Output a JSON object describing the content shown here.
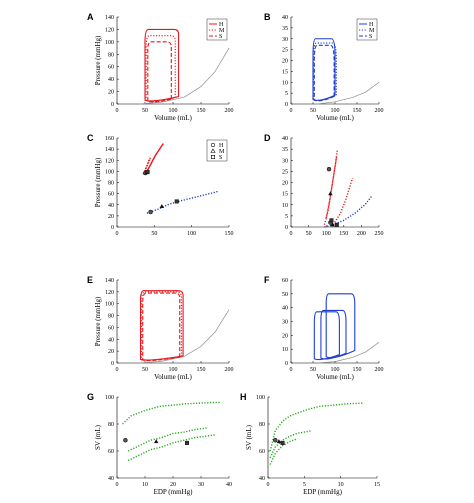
{
  "colors": {
    "red": "#e8161b",
    "blue": "#1f3fd1",
    "green": "#1fa814",
    "gray": "#8c8c8c",
    "black": "#111111"
  },
  "chart_data": [
    {
      "panel": "A",
      "type": "line",
      "xlabel": "Volume (mL)",
      "ylabel": "Pressure (mmHg)",
      "xlim": [
        0,
        200
      ],
      "ylim": [
        0,
        140
      ],
      "xticks": [
        0,
        50,
        100,
        150,
        200
      ],
      "yticks": [
        0,
        20,
        40,
        60,
        80,
        100,
        120,
        140
      ],
      "legend": {
        "position": "top-right",
        "entries": [
          "H",
          "M",
          "S"
        ]
      },
      "loops": [
        {
          "name": "H",
          "style": "solid",
          "edv": 110,
          "esv": 50,
          "ped": 12,
          "pes": 104,
          "pmax": 120
        },
        {
          "name": "M",
          "style": "dotted",
          "edv": 104,
          "esv": 52,
          "ped": 10,
          "pes": 95,
          "pmax": 110
        },
        {
          "name": "S",
          "style": "dashed",
          "edv": 97,
          "esv": 55,
          "ped": 8,
          "pes": 92,
          "pmax": 100
        }
      ],
      "edpvr": {
        "color": "gray",
        "x": [
          40,
          80,
          120,
          150,
          175,
          200
        ],
        "y": [
          0,
          3,
          11,
          28,
          52,
          90
        ]
      }
    },
    {
      "panel": "B",
      "type": "line",
      "xlabel": "Volume (mL)",
      "ylabel": "",
      "xlim": [
        0,
        200
      ],
      "ylim": [
        0,
        40
      ],
      "xticks": [
        0,
        50,
        100,
        150,
        200
      ],
      "yticks": [
        0,
        5,
        10,
        15,
        20,
        25,
        30,
        35,
        40
      ],
      "legend": {
        "position": "top-right",
        "entries": [
          "H",
          "M",
          "S"
        ]
      },
      "loops": [
        {
          "name": "H",
          "style": "solid",
          "edv": 100,
          "esv": 50,
          "ped": 4,
          "pes": 26,
          "pmax": 30
        },
        {
          "name": "M",
          "style": "dotted",
          "edv": 103,
          "esv": 51,
          "ped": 4,
          "pes": 24,
          "pmax": 28
        },
        {
          "name": "S",
          "style": "dashed",
          "edv": 98,
          "esv": 53,
          "ped": 3.5,
          "pes": 23,
          "pmax": 27
        }
      ],
      "edpvr": {
        "color": "gray",
        "x": [
          60,
          100,
          140,
          170,
          200
        ],
        "y": [
          0,
          1,
          3,
          5.5,
          10
        ]
      }
    },
    {
      "panel": "C",
      "type": "scatter",
      "xlabel": "",
      "ylabel": "Pressure (mmHg)",
      "xlim": [
        0,
        150
      ],
      "ylim": [
        0,
        160
      ],
      "xticks": [
        0,
        50,
        100,
        150
      ],
      "yticks": [
        0,
        20,
        40,
        60,
        80,
        100,
        120,
        140,
        160
      ],
      "legend": {
        "position": "top-right",
        "entries": [
          "H",
          "M",
          "S"
        ]
      },
      "series": [
        {
          "color": "red",
          "x": [
            40,
            42,
            45,
            48,
            52,
            58,
            62
          ],
          "y": [
            100,
            105,
            112,
            120,
            130,
            142,
            150
          ],
          "style": "solid"
        },
        {
          "color": "red",
          "x": [
            35,
            37,
            40,
            42,
            45
          ],
          "y": [
            95,
            100,
            110,
            118,
            125
          ],
          "style": "dotted"
        },
        {
          "color": "red",
          "x": [
            36,
            38,
            41,
            44
          ],
          "y": [
            96,
            103,
            112,
            122
          ],
          "style": "dotted"
        },
        {
          "color": "blue",
          "x": [
            40,
            55,
            70,
            85,
            100,
            115,
            130,
            135
          ],
          "y": [
            25,
            32,
            41,
            47,
            52,
            57,
            62,
            64
          ],
          "style": "dotted"
        }
      ],
      "markers": [
        {
          "name": "H",
          "shape": "circle",
          "points": [
            [
              38,
              97
            ],
            [
              45,
              27
            ]
          ]
        },
        {
          "name": "M",
          "shape": "triangle",
          "points": [
            [
              40,
              98
            ],
            [
              60,
              37
            ]
          ]
        },
        {
          "name": "S",
          "shape": "square",
          "points": [
            [
              41,
              99
            ],
            [
              80,
              46
            ]
          ]
        }
      ]
    },
    {
      "panel": "D",
      "type": "scatter",
      "xlabel": "",
      "ylabel": "",
      "xlim": [
        0,
        250
      ],
      "ylim": [
        0,
        40
      ],
      "xticks": [
        0,
        50,
        100,
        150,
        200,
        250
      ],
      "yticks": [
        0,
        5,
        10,
        15,
        20,
        25,
        30,
        35,
        40
      ],
      "series": [
        {
          "color": "red",
          "x": [
            95,
            105,
            112,
            118,
            124,
            130
          ],
          "y": [
            1,
            7,
            14,
            20,
            26,
            32
          ],
          "style": "dotted"
        },
        {
          "color": "red",
          "x": [
            100,
            110,
            118,
            126,
            132
          ],
          "y": [
            4,
            12,
            20,
            28,
            35
          ],
          "style": "dotted"
        },
        {
          "color": "red",
          "x": [
            120,
            140,
            155,
            165,
            175
          ],
          "y": [
            1,
            6,
            12,
            17,
            22
          ],
          "style": "dotted"
        },
        {
          "color": "blue",
          "x": [
            95,
            120,
            150,
            180,
            210,
            230
          ],
          "y": [
            0,
            1,
            3,
            6,
            10,
            14
          ],
          "style": "dotted"
        }
      ],
      "markers": [
        {
          "name": "H",
          "shape": "circle",
          "points": [
            [
              108,
              26
            ],
            [
              112,
              2
            ]
          ]
        },
        {
          "name": "M",
          "shape": "triangle",
          "points": [
            [
              112,
              15
            ],
            [
              118,
              1
            ]
          ]
        },
        {
          "name": "S",
          "shape": "square",
          "points": [
            [
              115,
              3
            ],
            [
              130,
              1
            ]
          ]
        }
      ]
    },
    {
      "panel": "E",
      "type": "line",
      "xlabel": "Volume (mL)",
      "ylabel": "Pressure (mmHg)",
      "xlim": [
        0,
        200
      ],
      "ylim": [
        0,
        140
      ],
      "xticks": [
        0,
        50,
        100,
        150,
        200
      ],
      "yticks": [
        0,
        20,
        40,
        60,
        80,
        100,
        120,
        140
      ],
      "loops": [
        {
          "name": "H",
          "style": "solid",
          "edv": 118,
          "esv": 42,
          "ped": 12,
          "pes": 110,
          "pmax": 122
        },
        {
          "name": "M",
          "style": "dotted",
          "edv": 115,
          "esv": 44,
          "ped": 11,
          "pes": 108,
          "pmax": 120
        },
        {
          "name": "S",
          "style": "dashed",
          "edv": 112,
          "esv": 46,
          "ped": 10,
          "pes": 106,
          "pmax": 118
        }
      ],
      "edpvr": {
        "color": "gray",
        "x": [
          40,
          80,
          120,
          150,
          175,
          200
        ],
        "y": [
          0,
          3,
          11,
          28,
          52,
          90
        ]
      }
    },
    {
      "panel": "F",
      "type": "line",
      "xlabel": "Volume (mL)",
      "ylabel": "",
      "xlim": [
        0,
        200
      ],
      "ylim": [
        0,
        60
      ],
      "xticks": [
        0,
        50,
        100,
        150,
        200
      ],
      "yticks": [
        0,
        10,
        20,
        30,
        40,
        50,
        60
      ],
      "loops": [
        {
          "name": "H",
          "style": "solid",
          "edv": 110,
          "esv": 53,
          "ped": 6,
          "pes": 33,
          "pmax": 37
        },
        {
          "name": "M",
          "style": "solid",
          "edv": 125,
          "esv": 68,
          "ped": 7,
          "pes": 35,
          "pmax": 38
        },
        {
          "name": "S",
          "style": "solid",
          "edv": 145,
          "esv": 80,
          "ped": 9,
          "pes": 47,
          "pmax": 50
        }
      ],
      "edpvr": {
        "color": "gray",
        "x": [
          60,
          100,
          140,
          170,
          200
        ],
        "y": [
          0,
          1,
          4,
          8,
          15
        ]
      }
    },
    {
      "panel": "G",
      "type": "scatter",
      "xlabel": "EDP (mmHg)",
      "ylabel": "SV (mL)",
      "xlim": [
        0,
        40
      ],
      "ylim": [
        40,
        100
      ],
      "xticks": [
        0,
        10,
        20,
        30,
        40
      ],
      "yticks": [
        40,
        60,
        80,
        100
      ],
      "series": [
        {
          "color": "green",
          "x": [
            2,
            5,
            10,
            15,
            20,
            25,
            30,
            35,
            37
          ],
          "y": [
            80,
            86,
            90,
            93,
            94,
            95,
            95.5,
            96,
            96
          ],
          "style": "dotted"
        },
        {
          "color": "green",
          "x": [
            4,
            8,
            12,
            16,
            20,
            24,
            28,
            32
          ],
          "y": [
            60,
            64,
            68,
            70,
            73,
            74,
            76,
            77
          ],
          "style": "dotted"
        },
        {
          "color": "green",
          "x": [
            4,
            8,
            12,
            16,
            20,
            24,
            28,
            32,
            35
          ],
          "y": [
            53,
            57,
            61,
            63,
            66,
            68,
            70,
            71,
            72
          ],
          "style": "dotted"
        }
      ],
      "markers": [
        {
          "name": "H",
          "shape": "circle",
          "points": [
            [
              3,
              68
            ]
          ]
        },
        {
          "name": "M",
          "shape": "triangle",
          "points": [
            [
              14,
              67
            ]
          ]
        },
        {
          "name": "S",
          "shape": "square",
          "points": [
            [
              25,
              66
            ]
          ]
        }
      ]
    },
    {
      "panel": "H",
      "type": "scatter",
      "xlabel": "EDP (mmHg)",
      "ylabel": "SV (mL)",
      "xlim": [
        0,
        15
      ],
      "ylim": [
        40,
        100
      ],
      "xticks": [
        0,
        5,
        10,
        15
      ],
      "yticks": [
        40,
        60,
        80,
        100
      ],
      "series": [
        {
          "color": "green",
          "x": [
            0.3,
            1,
            2,
            3,
            5,
            7,
            9,
            11,
            13
          ],
          "y": [
            60,
            75,
            82,
            86,
            90,
            93,
            94,
            95,
            95.5
          ],
          "style": "dotted"
        },
        {
          "color": "green",
          "x": [
            0.3,
            1,
            2,
            3,
            4,
            5,
            6
          ],
          "y": [
            55,
            63,
            68,
            71,
            73,
            74,
            75
          ],
          "style": "dotted"
        },
        {
          "color": "green",
          "x": [
            0.3,
            1,
            2,
            3,
            4
          ],
          "y": [
            50,
            58,
            64,
            67,
            69
          ],
          "style": "dotted"
        }
      ],
      "markers": [
        {
          "name": "H",
          "shape": "circle",
          "points": [
            [
              1,
              68
            ]
          ]
        },
        {
          "name": "M",
          "shape": "triangle",
          "points": [
            [
              1.5,
              67
            ]
          ]
        },
        {
          "name": "S",
          "shape": "square",
          "points": [
            [
              2,
              66
            ]
          ]
        }
      ]
    }
  ]
}
